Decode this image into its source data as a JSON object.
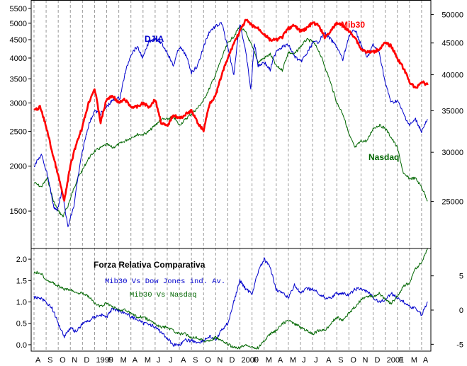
{
  "chart_data": [
    {
      "type": "line",
      "title": "",
      "xlabel": "",
      "month_labels": [
        "A",
        "S",
        "O",
        "N",
        "D",
        "1999",
        "F",
        "M",
        "A",
        "M",
        "J",
        "J",
        "A",
        "S",
        "O",
        "N",
        "D",
        "2000",
        "F",
        "M",
        "A",
        "M",
        "J",
        "J",
        "A",
        "S",
        "O",
        "N",
        "D",
        "2001",
        "F",
        "M",
        "A"
      ],
      "left_axis": {
        "scale": "log",
        "ticks": [
          1500,
          2000,
          2500,
          3000,
          3500,
          4000,
          4500,
          5000,
          5500
        ],
        "range": [
          1180,
          5750
        ]
      },
      "right_axis": {
        "scale": "log",
        "ticks": [
          25000,
          30000,
          35000,
          40000,
          45000,
          50000
        ],
        "range": [
          21000,
          52500
        ]
      },
      "grid": "dashed vertical lines at each month",
      "series": [
        {
          "name": "DJIA",
          "axis": "left",
          "color": "#0000cc",
          "x": [
            0,
            0.6,
            1.1,
            1.6,
            1.9,
            2.3,
            2.8,
            3.3,
            4.0,
            4.5,
            5.0,
            5.5,
            6.1,
            6.5,
            7.1,
            7.5,
            8.0,
            8.5,
            9.0,
            9.5,
            10.0,
            10.5,
            11.0,
            11.5,
            12.0,
            12.5,
            13.0,
            13.5,
            14.0,
            14.5,
            15.0,
            15.5,
            16.0,
            16.5,
            17.0,
            17.5,
            17.9,
            18.2,
            18.5,
            19.0,
            19.5,
            20.0,
            20.5,
            21.0,
            21.5,
            22.0,
            22.5,
            23.0,
            23.5,
            24.0,
            24.5,
            25.0,
            25.5,
            26.0,
            26.5,
            27.0,
            27.5,
            28.0,
            28.5,
            29.0,
            29.5,
            30.0,
            30.5,
            31.0,
            31.5,
            32.0,
            32.5
          ],
          "values": [
            2000,
            2150,
            1900,
            1550,
            1500,
            1700,
            1350,
            1550,
            2200,
            2600,
            2850,
            2800,
            2950,
            3050,
            3100,
            3600,
            4100,
            4300,
            4000,
            4450,
            4550,
            4400,
            4150,
            3800,
            4300,
            4100,
            3650,
            3800,
            4300,
            4750,
            4900,
            5000,
            4250,
            3600,
            5000,
            4100,
            3250,
            4400,
            3800,
            3900,
            3700,
            4200,
            4300,
            4350,
            4050,
            3900,
            4100,
            4400,
            4450,
            4700,
            4500,
            4300,
            3950,
            4600,
            4800,
            4350,
            4000,
            4350,
            4150,
            3400,
            3000,
            3050,
            2800,
            2600,
            2700,
            2500,
            2700
          ]
        },
        {
          "name": "Mib30",
          "axis": "right",
          "color": "#ff0000",
          "x": [
            0,
            0.5,
            1.0,
            1.5,
            2.0,
            2.5,
            3.0,
            3.5,
            4.0,
            4.5,
            5.0,
            5.5,
            6.0,
            6.5,
            7.0,
            7.5,
            8.0,
            8.5,
            9.0,
            9.5,
            10.0,
            10.5,
            11.0,
            11.5,
            12.0,
            12.5,
            13.0,
            13.5,
            14.0,
            14.5,
            15.0,
            15.5,
            16.0,
            16.5,
            17.0,
            17.5,
            18.0,
            18.5,
            19.0,
            19.5,
            20.0,
            20.5,
            21.0,
            21.5,
            22.0,
            22.5,
            23.0,
            23.5,
            24.0,
            24.5,
            25.0,
            25.5,
            26.0,
            26.5,
            27.0,
            27.5,
            28.0,
            28.5,
            29.0,
            29.5,
            30.0,
            30.5,
            31.0,
            31.5,
            32.0,
            32.5
          ],
          "values": [
            35000,
            35500,
            33000,
            30000,
            27500,
            25000,
            28500,
            31000,
            33000,
            36000,
            38000,
            33500,
            36500,
            37000,
            36000,
            36500,
            35500,
            35500,
            36000,
            35500,
            36500,
            33500,
            33000,
            34500,
            34000,
            34500,
            35000,
            33500,
            32500,
            36000,
            37000,
            40000,
            42500,
            45000,
            47000,
            49000,
            48000,
            47500,
            46500,
            45500,
            45500,
            46000,
            47500,
            48000,
            47000,
            47500,
            48500,
            48000,
            46000,
            47000,
            48500,
            48000,
            47000,
            46000,
            44000,
            43500,
            43500,
            44000,
            45000,
            44500,
            42500,
            41000,
            39000,
            38000,
            39000,
            38500
          ]
        },
        {
          "name": "Nasdaq",
          "axis": "left",
          "color": "#006600",
          "x": [
            0,
            0.6,
            1.1,
            1.6,
            2.0,
            2.4,
            2.8,
            3.2,
            3.6,
            4.0,
            4.5,
            5.0,
            5.5,
            6.0,
            6.5,
            7.0,
            7.5,
            8.0,
            8.5,
            9.0,
            9.5,
            10.0,
            10.5,
            11.0,
            11.5,
            12.0,
            12.5,
            13.0,
            13.5,
            14.0,
            14.5,
            15.0,
            15.5,
            16.0,
            16.5,
            17.0,
            17.5,
            18.0,
            18.5,
            19.0,
            19.5,
            20.0,
            20.5,
            21.0,
            21.5,
            22.0,
            22.5,
            23.0,
            23.5,
            24.0,
            24.5,
            25.0,
            25.5,
            26.0,
            26.5,
            27.0,
            27.5,
            28.0,
            28.5,
            29.0,
            29.5,
            30.0,
            30.5,
            31.0,
            31.5,
            32.0,
            32.5
          ],
          "values": [
            1800,
            1750,
            1850,
            1600,
            1500,
            1450,
            1550,
            1700,
            1850,
            1950,
            2100,
            2200,
            2250,
            2300,
            2250,
            2300,
            2350,
            2400,
            2450,
            2450,
            2500,
            2600,
            2700,
            2700,
            2750,
            2600,
            2700,
            2800,
            2900,
            3050,
            3300,
            3600,
            4000,
            4400,
            4600,
            4900,
            4700,
            4300,
            3900,
            4000,
            4100,
            3800,
            3700,
            4150,
            4100,
            4300,
            4500,
            4450,
            4200,
            3800,
            3400,
            3000,
            2800,
            2450,
            2250,
            2350,
            2350,
            2550,
            2600,
            2550,
            2400,
            2250,
            1900,
            1850,
            1850,
            1750,
            1600
          ]
        }
      ],
      "annotations": [
        "DJIA",
        "Mib30",
        "Nasdaq"
      ]
    },
    {
      "type": "line",
      "title": "Forza Relativa Comparativa",
      "xlabel": "",
      "left_axis": {
        "ticks": [
          0.0,
          0.5,
          1.0,
          1.5,
          2.0
        ],
        "range": [
          -0.15,
          2.25
        ]
      },
      "right_axis": {
        "ticks": [
          -5,
          0,
          5
        ],
        "range": [
          -6,
          9
        ]
      },
      "series": [
        {
          "name": "Mib30 Vs Dow Jones ind. Av.",
          "axis": "left",
          "color": "#0000cc",
          "x": [
            0,
            0.5,
            1.0,
            1.5,
            2.0,
            2.5,
            3.0,
            3.5,
            4.0,
            4.5,
            5.0,
            5.5,
            6.0,
            6.5,
            7.0,
            7.5,
            8.0,
            8.5,
            9.0,
            9.5,
            10.0,
            10.5,
            11.0,
            11.5,
            12.0,
            12.5,
            13.0,
            13.5,
            14.0,
            14.5,
            15.0,
            15.5,
            16.0,
            16.5,
            17.0,
            17.5,
            18.0,
            18.5,
            19.0,
            19.5,
            20.0,
            20.5,
            21.0,
            21.5,
            22.0,
            22.5,
            23.0,
            23.5,
            24.0,
            24.5,
            25.0,
            25.5,
            26.0,
            26.5,
            27.0,
            27.5,
            28.0,
            28.5,
            29.0,
            29.5,
            30.0,
            30.5,
            31.0,
            31.5,
            32.0,
            32.5
          ],
          "values": [
            1.1,
            1.1,
            1.0,
            0.85,
            0.5,
            0.2,
            0.4,
            0.3,
            0.5,
            0.55,
            0.65,
            0.7,
            0.65,
            0.85,
            0.8,
            0.75,
            0.65,
            0.6,
            0.5,
            0.5,
            0.4,
            0.3,
            0.15,
            0.0,
            0.0,
            0.1,
            0.1,
            0.05,
            0.1,
            0.2,
            0.1,
            0.35,
            0.5,
            1.0,
            1.5,
            1.3,
            1.2,
            1.7,
            2.0,
            1.8,
            1.3,
            1.2,
            1.1,
            1.4,
            1.2,
            1.3,
            1.3,
            1.2,
            1.1,
            1.1,
            1.2,
            1.2,
            1.15,
            1.3,
            1.3,
            1.25,
            1.1,
            1.0,
            1.05,
            1.2,
            1.1,
            1.0,
            0.9,
            0.85,
            0.7,
            1.0
          ]
        },
        {
          "name": "Mib30 Vs Nasdaq",
          "axis": "right",
          "color": "#006600",
          "x": [
            0,
            0.5,
            1.0,
            1.5,
            2.0,
            2.5,
            3.0,
            3.5,
            4.0,
            4.5,
            5.0,
            5.5,
            6.0,
            6.5,
            7.0,
            7.5,
            8.0,
            8.5,
            9.0,
            9.5,
            10.0,
            10.5,
            11.0,
            11.5,
            12.0,
            12.5,
            13.0,
            13.5,
            14.0,
            14.5,
            15.0,
            15.5,
            16.0,
            16.5,
            17.0,
            17.5,
            18.0,
            18.5,
            19.0,
            19.5,
            20.0,
            20.5,
            21.0,
            21.5,
            22.0,
            22.5,
            23.0,
            23.5,
            24.0,
            24.5,
            25.0,
            25.5,
            26.0,
            26.5,
            27.0,
            27.5,
            28.0,
            28.5,
            29.0,
            29.5,
            30.0,
            30.5,
            31.0,
            31.5,
            32.0,
            32.5
          ],
          "values": [
            5.5,
            5.5,
            4.5,
            4.0,
            3.5,
            3.0,
            3.0,
            2.5,
            2.5,
            2.0,
            1.0,
            0.5,
            1.0,
            0.5,
            0.0,
            0.0,
            -0.5,
            -1.0,
            -1.0,
            -1.5,
            -2.0,
            -2.5,
            -2.5,
            -3.0,
            -3.5,
            -3.5,
            -4.0,
            -4.0,
            -4.5,
            -4.5,
            -4.0,
            -4.5,
            -5.0,
            -5.5,
            -5.5,
            -5.0,
            -5.5,
            -5.5,
            -4.5,
            -3.5,
            -3.0,
            -2.0,
            -1.5,
            -2.0,
            -2.5,
            -3.0,
            -3.5,
            -3.0,
            -3.0,
            -2.0,
            -1.0,
            -1.5,
            -0.5,
            0.5,
            1.5,
            2.0,
            2.0,
            2.5,
            1.5,
            1.0,
            2.0,
            3.5,
            4.0,
            6.0,
            7.0,
            9.0
          ]
        }
      ]
    }
  ]
}
